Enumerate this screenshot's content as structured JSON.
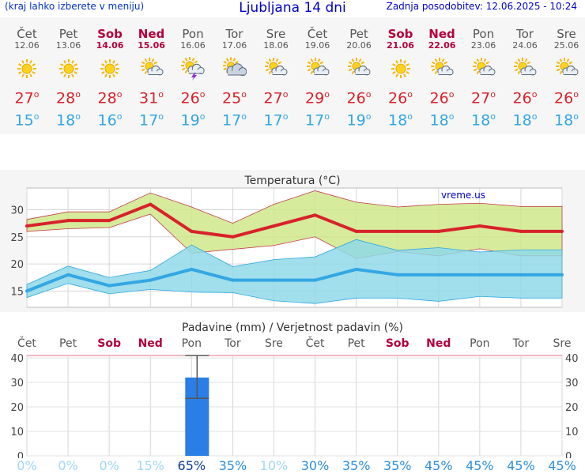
{
  "header": {
    "menu_link": "(kraj lahko izberete v meniju)",
    "title": "Ljubljana 14 dni",
    "updated": "Zadnja posodobitev: 12.06.2025 - 10:24"
  },
  "days": [
    {
      "name": "Čet",
      "date": "12.06",
      "weekend": false,
      "icon": "sun-icon",
      "tmax": "27",
      "tmin": "15"
    },
    {
      "name": "Pet",
      "date": "13.06",
      "weekend": false,
      "icon": "sun-icon",
      "tmax": "28",
      "tmin": "18"
    },
    {
      "name": "Sob",
      "date": "14.06",
      "weekend": true,
      "icon": "sun-icon",
      "tmax": "28",
      "tmin": "16"
    },
    {
      "name": "Ned",
      "date": "15.06",
      "weekend": true,
      "icon": "sun-cloud-icon",
      "tmax": "31",
      "tmin": "17"
    },
    {
      "name": "Pon",
      "date": "16.06",
      "weekend": false,
      "icon": "sun-cloud-storm-icon",
      "tmax": "26",
      "tmin": "19"
    },
    {
      "name": "Tor",
      "date": "17.06",
      "weekend": false,
      "icon": "sun-cloudy-icon",
      "tmax": "25",
      "tmin": "17"
    },
    {
      "name": "Sre",
      "date": "18.06",
      "weekend": false,
      "icon": "sun-cloud-icon",
      "tmax": "27",
      "tmin": "17"
    },
    {
      "name": "Čet",
      "date": "19.06",
      "weekend": false,
      "icon": "sun-cloud-icon",
      "tmax": "29",
      "tmin": "17"
    },
    {
      "name": "Pet",
      "date": "20.06",
      "weekend": false,
      "icon": "sun-cloud-icon",
      "tmax": "26",
      "tmin": "19"
    },
    {
      "name": "Sob",
      "date": "21.06",
      "weekend": true,
      "icon": "sun-icon",
      "tmax": "26",
      "tmin": "18"
    },
    {
      "name": "Ned",
      "date": "22.06",
      "weekend": true,
      "icon": "sun-cloud-icon",
      "tmax": "26",
      "tmin": "18"
    },
    {
      "name": "Pon",
      "date": "23.06",
      "weekend": false,
      "icon": "sun-cloud-icon",
      "tmax": "27",
      "tmin": "18"
    },
    {
      "name": "Tor",
      "date": "24.06",
      "weekend": false,
      "icon": "sun-cloud-icon",
      "tmax": "26",
      "tmin": "18"
    },
    {
      "name": "Sre",
      "date": "25.06",
      "weekend": false,
      "icon": "sun-cloud-icon",
      "tmax": "26",
      "tmin": "18"
    }
  ],
  "colors": {
    "tmax": "#d8222b",
    "tmin": "#33a7e3",
    "weekend": "#b3003b",
    "band_max": "#cfe88a",
    "band_min": "#8fd9e8",
    "bar": "#2a7ee6"
  },
  "chart_data": [
    {
      "type": "line",
      "title": "Temperatura (°C)",
      "watermark": "vreme.us",
      "categories": [
        "Čet",
        "Pet",
        "Sob",
        "Ned",
        "Pon",
        "Tor",
        "Sre",
        "Čet",
        "Pet",
        "Sob",
        "Ned",
        "Pon",
        "Tor",
        "Sre"
      ],
      "series": [
        {
          "values": [
            27,
            28,
            28,
            31,
            26,
            25,
            27,
            29,
            26,
            26,
            26,
            27,
            26,
            26
          ]
        },
        {
          "values": [
            15,
            18,
            16,
            17,
            19,
            17,
            17,
            17,
            19,
            18,
            18,
            18,
            18,
            18
          ]
        }
      ],
      "bands": [
        {
          "upper": [
            28.2,
            29.6,
            29.6,
            33.1,
            30.5,
            27.5,
            31,
            33.5,
            31.4,
            30.5,
            31,
            31.2,
            30.6,
            30.6
          ],
          "lower": [
            26,
            26.5,
            26.7,
            29.2,
            22,
            22.7,
            23.4,
            25,
            21,
            22.3,
            21.5,
            22.8,
            21.5,
            21.5
          ]
        },
        {
          "upper": [
            16.2,
            19.6,
            17.5,
            18.8,
            23.5,
            19.5,
            20.8,
            21.3,
            24.5,
            22.5,
            23,
            22.2,
            22.6,
            22.6
          ],
          "lower": [
            13.8,
            16.4,
            14.5,
            15.3,
            14.8,
            14.7,
            13.2,
            12.7,
            13.7,
            13.7,
            13.1,
            14,
            13.7,
            13.7
          ]
        }
      ],
      "ylim": [
        12,
        34
      ],
      "yticks": [
        15,
        20,
        25,
        30
      ]
    },
    {
      "type": "bar",
      "title": "Padavine (mm) / Verjetnost padavin (%)",
      "categories": [
        "Čet",
        "Pet",
        "Sob",
        "Ned",
        "Pon",
        "Tor",
        "Sre",
        "Čet",
        "Pet",
        "Sob",
        "Ned",
        "Pon",
        "Tor",
        "Sre"
      ],
      "values": [
        0,
        0,
        0,
        0,
        32,
        0,
        0,
        0,
        0,
        0,
        0,
        0,
        0,
        0
      ],
      "error_range": [
        [
          0,
          0
        ],
        [
          0,
          0
        ],
        [
          0,
          0
        ],
        [
          0,
          0
        ],
        [
          23.5,
          41
        ],
        [
          0,
          0
        ],
        [
          0,
          0
        ],
        [
          0,
          0
        ],
        [
          0,
          0
        ],
        [
          0,
          0
        ],
        [
          0,
          0
        ],
        [
          0,
          0
        ],
        [
          0,
          0
        ],
        [
          0,
          0
        ]
      ],
      "probability": [
        "0%",
        "0%",
        "0%",
        "15%",
        "65%",
        "35%",
        "10%",
        "30%",
        "35%",
        "35%",
        "45%",
        "45%",
        "45%",
        "45%"
      ],
      "ylim": [
        0,
        41
      ],
      "yticks": [
        0,
        10,
        20,
        30,
        40
      ]
    }
  ]
}
